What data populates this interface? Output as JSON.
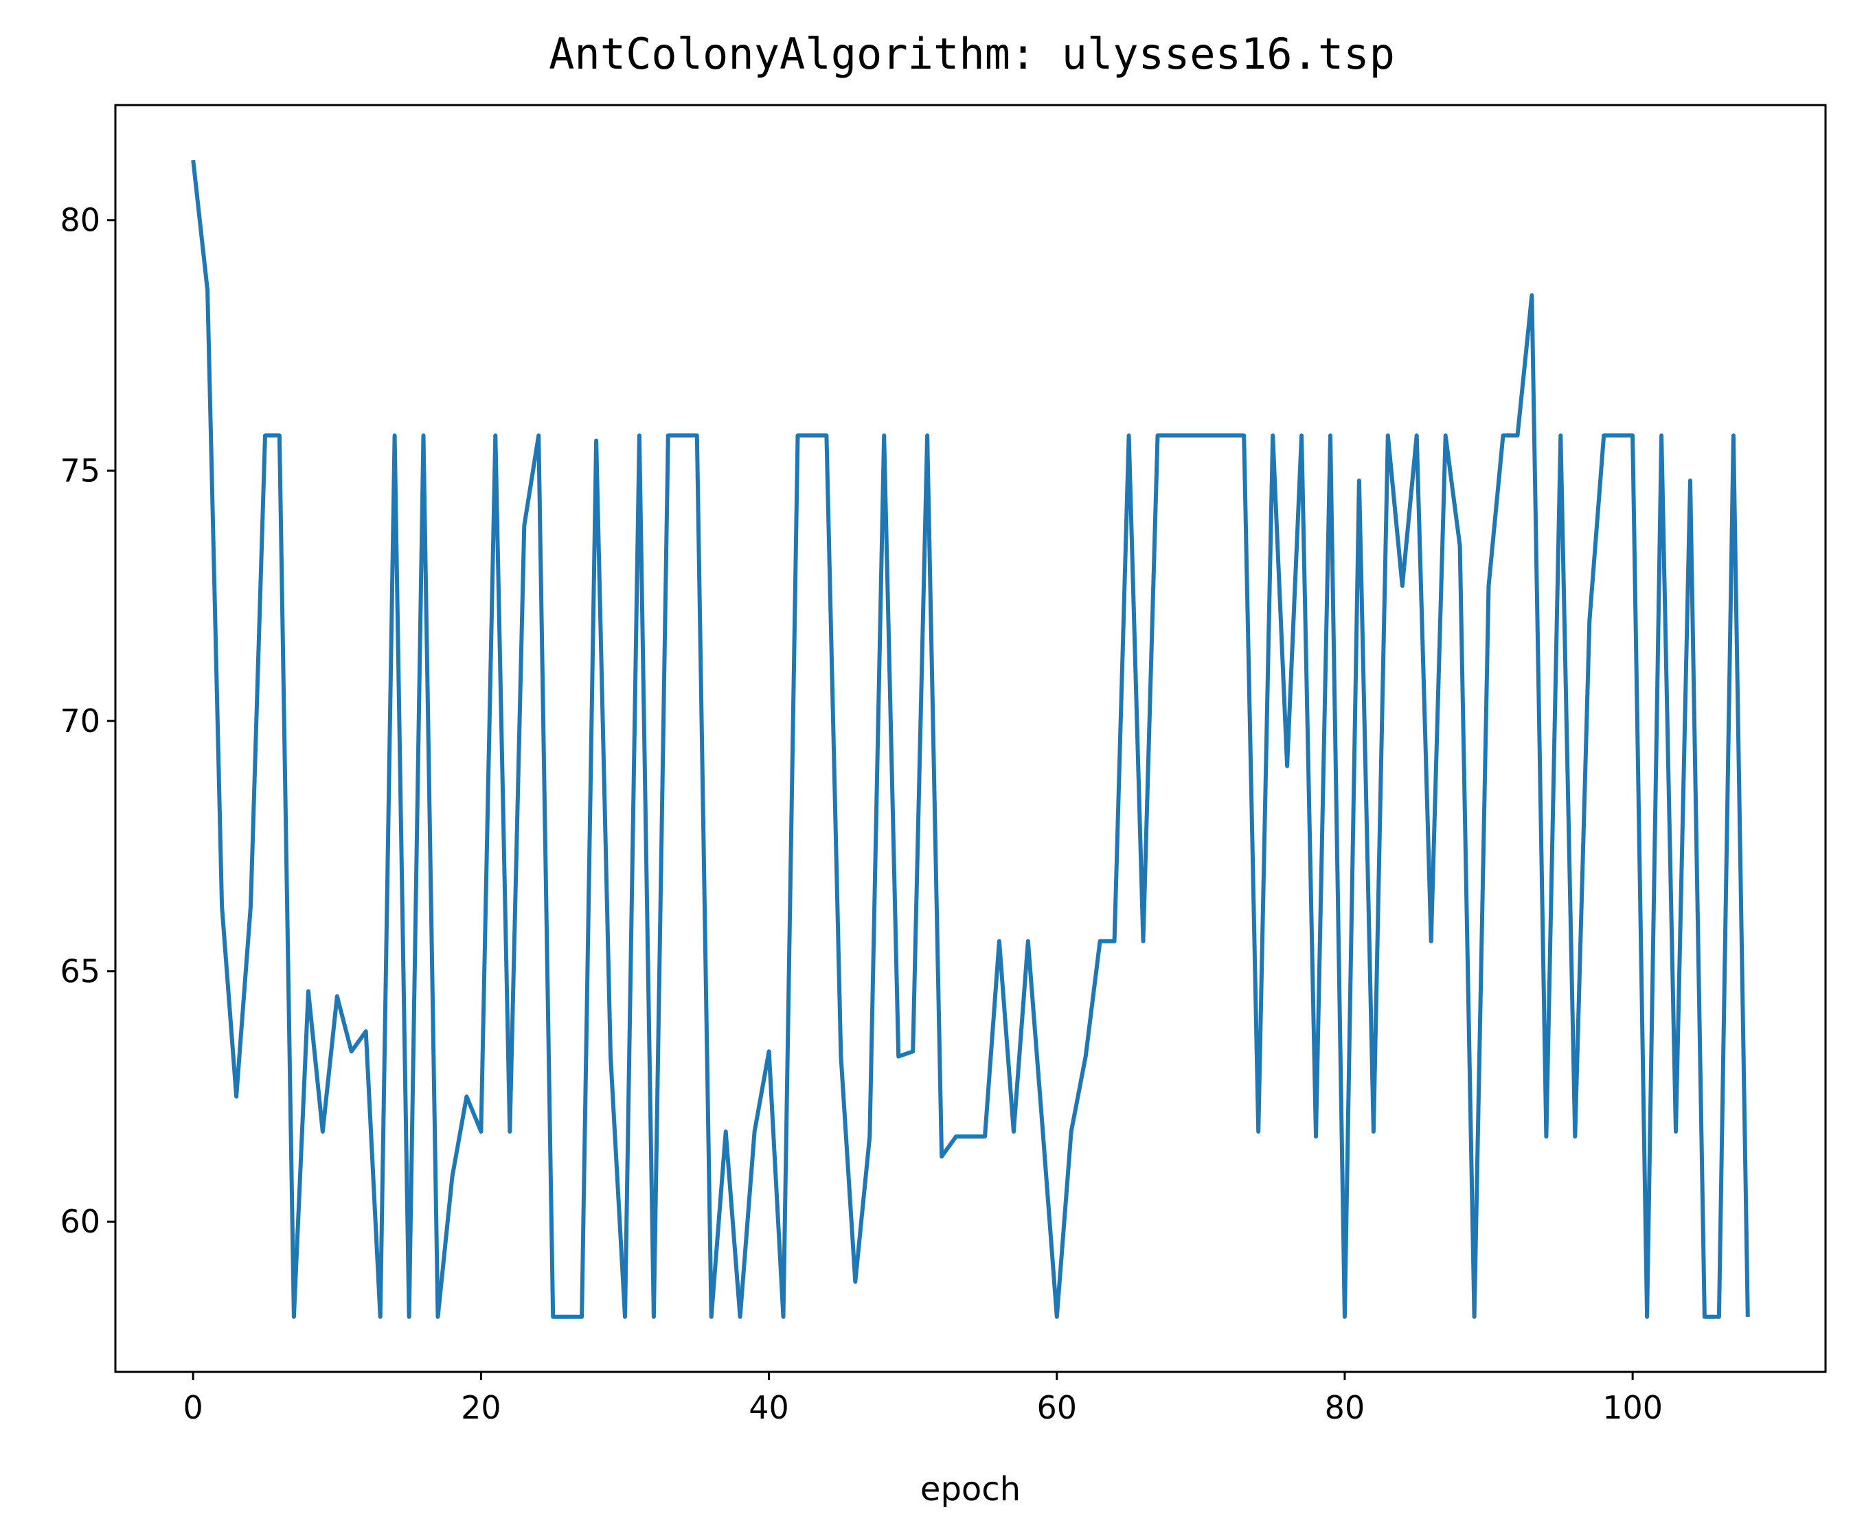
{
  "chart_data": {
    "type": "line",
    "title": "AntColonyAlgorithm: ulysses16.tsp",
    "xlabel": "epoch",
    "ylabel": "",
    "xlim": [
      -5.4,
      113.4
    ],
    "ylim": [
      57.0,
      82.3
    ],
    "xticks": [
      0,
      20,
      40,
      60,
      80,
      100
    ],
    "xtick_labels": [
      "0",
      "20",
      "40",
      "60",
      "80",
      "100"
    ],
    "yticks": [
      60,
      65,
      70,
      75,
      80
    ],
    "ytick_labels": [
      "60",
      "65",
      "70",
      "75",
      "80"
    ],
    "grid": false,
    "line_color": "#1f77b4",
    "series": [
      {
        "x": [
          0,
          1,
          2,
          3,
          4,
          5,
          6,
          7,
          8,
          9,
          10,
          11,
          12,
          13,
          14,
          15,
          16,
          17,
          18,
          19,
          20,
          21,
          22,
          23,
          24,
          25,
          26,
          27,
          28,
          29,
          30,
          31,
          32,
          33,
          34,
          35,
          36,
          37,
          38,
          39,
          40,
          41,
          42,
          43,
          44,
          45,
          46,
          47,
          48,
          49,
          50,
          51,
          52,
          53,
          54,
          55,
          56,
          57,
          58,
          59,
          60,
          61,
          62,
          63,
          64,
          65,
          66,
          67,
          68,
          69,
          70,
          71,
          72,
          73,
          74,
          75,
          76,
          77,
          78,
          79,
          80,
          81,
          82,
          83,
          84,
          85,
          86,
          87,
          88,
          89,
          90,
          91,
          92,
          93,
          94,
          95,
          96,
          97,
          98,
          99,
          100,
          101,
          102,
          103,
          104,
          105,
          106,
          107,
          108
        ],
        "y": [
          81.2,
          78.6,
          66.3,
          62.5,
          66.3,
          75.7,
          75.7,
          58.1,
          64.6,
          61.8,
          64.5,
          63.4,
          63.8,
          58.1,
          75.7,
          58.1,
          75.7,
          58.1,
          60.9,
          62.5,
          61.8,
          75.7,
          61.8,
          73.9,
          75.7,
          58.1,
          58.1,
          58.1,
          75.6,
          63.3,
          58.1,
          75.7,
          58.1,
          75.7,
          75.7,
          75.7,
          58.1,
          61.8,
          58.1,
          61.8,
          63.4,
          58.1,
          75.7,
          75.7,
          75.7,
          63.3,
          58.8,
          61.7,
          75.7,
          63.3,
          63.4,
          75.7,
          61.3,
          61.7,
          61.7,
          61.7,
          65.6,
          61.8,
          65.6,
          61.9,
          58.1,
          61.8,
          63.3,
          65.6,
          65.6,
          75.7,
          65.6,
          75.7,
          75.7,
          75.7,
          75.7,
          75.7,
          75.7,
          75.7,
          61.8,
          75.7,
          69.1,
          75.7,
          61.7,
          75.7,
          58.1,
          74.8,
          61.8,
          75.7,
          72.7,
          75.7,
          65.6,
          75.7,
          73.5,
          58.1,
          72.7,
          75.7,
          75.7,
          78.5,
          61.7,
          75.7,
          61.7,
          72.0,
          75.7,
          75.7,
          75.7,
          58.1,
          75.7,
          61.8,
          74.8,
          58.1,
          58.1,
          75.7,
          58.1
        ]
      }
    ]
  }
}
